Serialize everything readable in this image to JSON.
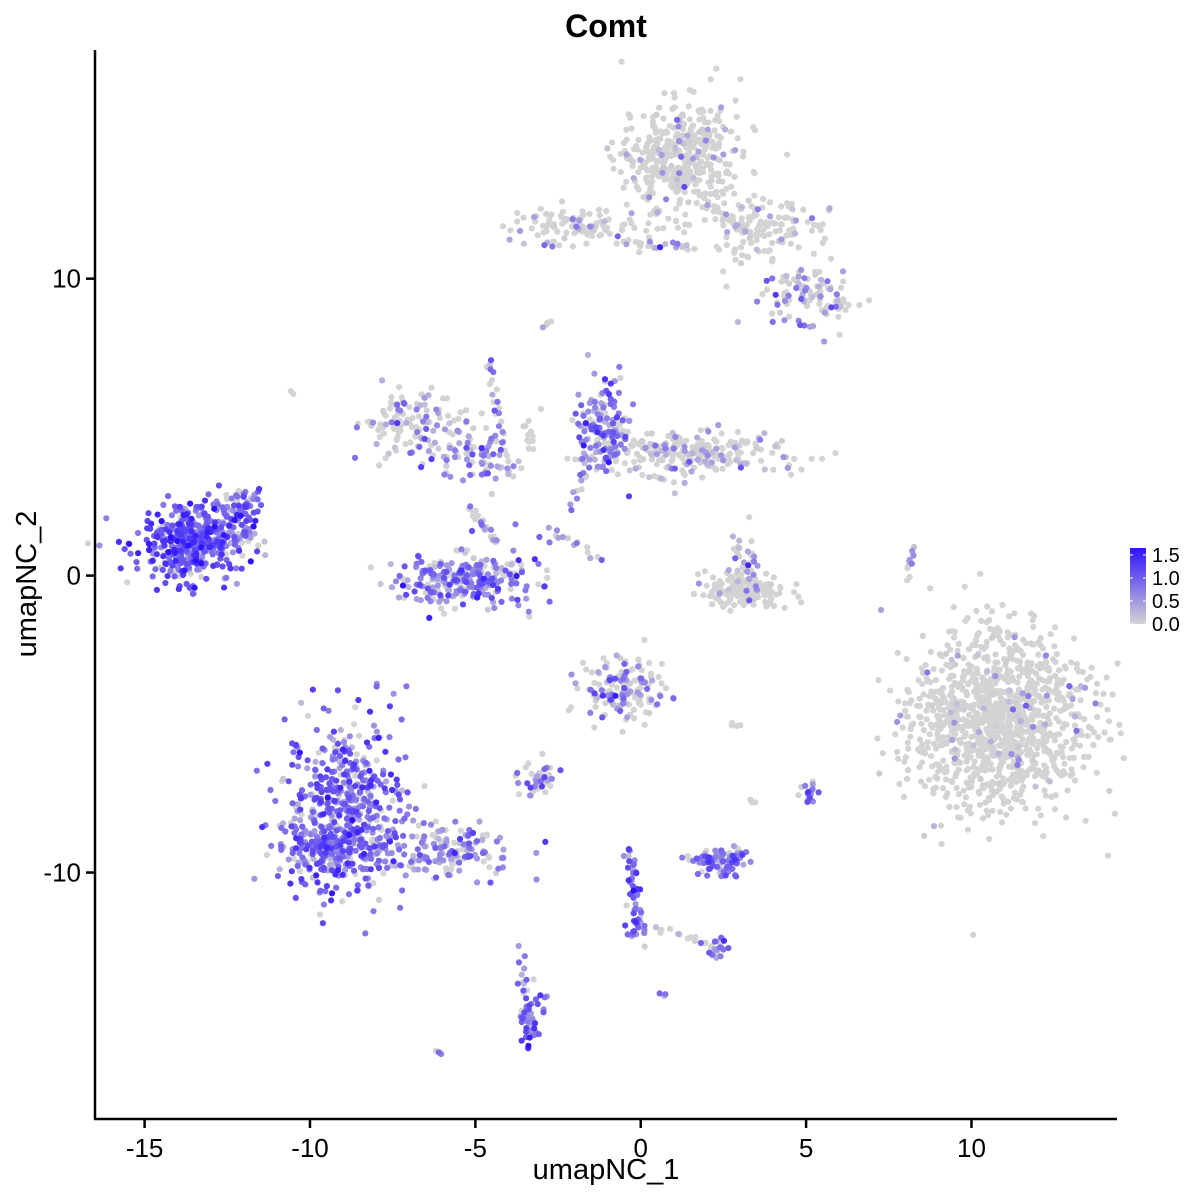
{
  "chart_data": {
    "type": "scatter",
    "title": "Comt",
    "xlabel": "umapNC_1",
    "ylabel": "umapNC_2",
    "xlim": [
      -16.5,
      14.4
    ],
    "ylim": [
      -18.3,
      17.7
    ],
    "x_ticks": [
      -15,
      -10,
      -5,
      0,
      5,
      10
    ],
    "y_ticks": [
      -10,
      0,
      10
    ],
    "x_tick_labels": [
      "-15",
      "-10",
      "-5",
      "0",
      "5",
      "10"
    ],
    "y_tick_labels": [
      "-10",
      "0",
      "10"
    ],
    "grid": false,
    "legend": {
      "placement": "right",
      "type": "colorbar",
      "min": 0.0,
      "max": 1.65,
      "ticks": [
        0.0,
        0.5,
        1.0,
        1.5
      ],
      "tick_labels": [
        "0.0",
        "0.5",
        "1.0",
        "1.5"
      ]
    },
    "color_low": "#d3d3d3",
    "color_high": "#2f13ff",
    "clusters": [
      {
        "name": "c1",
        "x": -13.6,
        "y": 1.1,
        "sx": 0.85,
        "sy": 0.65,
        "n": 420,
        "expr": 0.95,
        "frac": 0.92
      },
      {
        "name": "c1b",
        "x": -12.2,
        "y": 1.7,
        "sx": 0.35,
        "sy": 0.6,
        "n": 60,
        "expr": 0.8,
        "frac": 0.85
      },
      {
        "name": "c2",
        "x": -8.9,
        "y": -7.8,
        "sx": 0.9,
        "sy": 1.4,
        "n": 520,
        "expr": 0.85,
        "frac": 0.85
      },
      {
        "name": "c2b",
        "x": -9.4,
        "y": -9.2,
        "sx": 0.9,
        "sy": 0.5,
        "n": 160,
        "expr": 0.8,
        "frac": 0.8
      },
      {
        "name": "c2c",
        "x": -5.6,
        "y": -9.3,
        "sx": 0.9,
        "sy": 0.45,
        "n": 140,
        "expr": 0.65,
        "frac": 0.72
      },
      {
        "name": "c3",
        "x": -4.4,
        "y": 0.3,
        "sx": 0.7,
        "sy": 0.6,
        "n": 60,
        "expr": 0.7,
        "frac": 0.75
      },
      {
        "name": "c3b",
        "x": -5.7,
        "y": -0.2,
        "sx": 1.0,
        "sy": 0.45,
        "n": 220,
        "expr": 0.7,
        "frac": 0.75
      },
      {
        "name": "c4",
        "x": -7.0,
        "y": 5.2,
        "sx": 0.7,
        "sy": 0.6,
        "n": 110,
        "expr": 0.5,
        "frac": 0.4
      },
      {
        "name": "c4b",
        "x": -5.0,
        "y": 4.0,
        "sx": 0.7,
        "sy": 0.5,
        "n": 90,
        "expr": 0.6,
        "frac": 0.55
      },
      {
        "name": "c5",
        "x": -1.1,
        "y": 5.0,
        "sx": 0.4,
        "sy": 0.8,
        "n": 140,
        "expr": 0.75,
        "frac": 0.7
      },
      {
        "name": "c5b",
        "x": 1.5,
        "y": 4.1,
        "sx": 1.4,
        "sy": 0.4,
        "n": 230,
        "expr": 0.35,
        "frac": 0.3
      },
      {
        "name": "c6",
        "x": 1.2,
        "y": 14.1,
        "sx": 0.9,
        "sy": 0.9,
        "n": 420,
        "expr": 0.3,
        "frac": 0.1
      },
      {
        "name": "c6b",
        "x": 3.6,
        "y": 11.6,
        "sx": 0.9,
        "sy": 0.55,
        "n": 130,
        "expr": 0.3,
        "frac": 0.15
      },
      {
        "name": "c6c",
        "x": 5.1,
        "y": 9.4,
        "sx": 0.7,
        "sy": 0.5,
        "n": 100,
        "expr": 0.55,
        "frac": 0.45
      },
      {
        "name": "c6d",
        "x": -1.8,
        "y": 11.7,
        "sx": 1.2,
        "sy": 0.35,
        "n": 110,
        "expr": 0.35,
        "frac": 0.15
      },
      {
        "name": "c7",
        "x": 10.8,
        "y": -4.9,
        "sx": 1.3,
        "sy": 1.5,
        "n": 1150,
        "expr": 0.25,
        "frac": 0.06
      },
      {
        "name": "c8",
        "x": 3.2,
        "y": -0.5,
        "sx": 0.6,
        "sy": 0.3,
        "n": 170,
        "expr": 0.2,
        "frac": 0.05
      },
      {
        "name": "c8b",
        "x": 3.2,
        "y": 0.6,
        "sx": 0.25,
        "sy": 0.5,
        "n": 30,
        "expr": 0.6,
        "frac": 0.5
      },
      {
        "name": "c9",
        "x": -0.5,
        "y": -3.8,
        "sx": 0.6,
        "sy": 0.55,
        "n": 150,
        "expr": 0.55,
        "frac": 0.45
      },
      {
        "name": "c10",
        "x": 2.4,
        "y": -9.6,
        "sx": 0.45,
        "sy": 0.25,
        "n": 90,
        "expr": 0.75,
        "frac": 0.8
      },
      {
        "name": "c11",
        "x": -3.1,
        "y": -6.9,
        "sx": 0.35,
        "sy": 0.25,
        "n": 40,
        "expr": 0.6,
        "frac": 0.55
      },
      {
        "name": "c12",
        "x": -3.3,
        "y": -14.8,
        "sx": 0.2,
        "sy": 0.5,
        "n": 45,
        "expr": 0.85,
        "frac": 0.9
      },
      {
        "name": "c13",
        "x": 5.1,
        "y": -7.3,
        "sx": 0.15,
        "sy": 0.2,
        "n": 14,
        "expr": 0.75,
        "frac": 0.8
      },
      {
        "name": "c14",
        "x": 2.3,
        "y": -12.6,
        "sx": 0.2,
        "sy": 0.18,
        "n": 20,
        "expr": 0.7,
        "frac": 0.7
      },
      {
        "name": "c15",
        "x": -0.1,
        "y": -11.6,
        "sx": 0.2,
        "sy": 0.4,
        "n": 30,
        "expr": 0.9,
        "frac": 0.9
      }
    ],
    "trails": [
      {
        "x1": -0.3,
        "y1": -9.2,
        "x2": -0.2,
        "y2": -11.0,
        "n": 30,
        "expr": 0.9,
        "frac": 0.85
      },
      {
        "x1": -11.6,
        "y1": 2.8,
        "x2": -12.4,
        "y2": 1.8,
        "n": 20,
        "expr": 0.9,
        "frac": 0.9
      },
      {
        "x1": -5.2,
        "y1": 2.3,
        "x2": -4.4,
        "y2": 1.2,
        "n": 20,
        "expr": 0.45,
        "frac": 0.45
      },
      {
        "x1": -4.6,
        "y1": 7.3,
        "x2": -4.1,
        "y2": 4.3,
        "n": 22,
        "expr": 0.7,
        "frac": 0.7
      },
      {
        "x1": -3.5,
        "y1": 5.2,
        "x2": -3.3,
        "y2": 4.2,
        "n": 10,
        "expr": 0.3,
        "frac": 0.15
      },
      {
        "x1": -2.8,
        "y1": 1.6,
        "x2": -1.2,
        "y2": 0.6,
        "n": 14,
        "expr": 0.5,
        "frac": 0.45
      },
      {
        "x1": -2.1,
        "y1": 2.2,
        "x2": -1.4,
        "y2": 4.2,
        "n": 14,
        "expr": 0.5,
        "frac": 0.5
      },
      {
        "x1": -1.6,
        "y1": 4.9,
        "x2": 2.6,
        "y2": 3.8,
        "n": 40,
        "expr": 0.4,
        "frac": 0.35
      },
      {
        "x1": 2.0,
        "y1": 12.6,
        "x2": 3.2,
        "y2": 11.6,
        "n": 20,
        "expr": 0.3,
        "frac": 0.15
      },
      {
        "x1": -0.6,
        "y1": 11.2,
        "x2": 1.6,
        "y2": 11.1,
        "n": 18,
        "expr": 0.55,
        "frac": 0.5
      },
      {
        "x1": 0.3,
        "y1": -11.8,
        "x2": 2.2,
        "y2": -12.5,
        "n": 14,
        "expr": 0.4,
        "frac": 0.2
      },
      {
        "x1": -3.7,
        "y1": -12.6,
        "x2": -3.5,
        "y2": -14.4,
        "n": 10,
        "expr": 0.7,
        "frac": 0.7
      },
      {
        "x1": 8.1,
        "y1": -0.1,
        "x2": 8.2,
        "y2": 0.9,
        "n": 10,
        "expr": 0.5,
        "frac": 0.5
      },
      {
        "x1": -6.0,
        "y1": -16.0,
        "x2": -6.0,
        "y2": -16.1,
        "n": 4,
        "expr": 0.7,
        "frac": 0.75
      },
      {
        "x1": 0.6,
        "y1": -14.1,
        "x2": 0.7,
        "y2": -14.2,
        "n": 3,
        "expr": 0.7,
        "frac": 0.75
      },
      {
        "x1": -2.7,
        "y1": 8.6,
        "x2": -2.9,
        "y2": 8.4,
        "n": 4,
        "expr": 0.2,
        "frac": 0.1
      },
      {
        "x1": -10.5,
        "y1": 6.1,
        "x2": -10.5,
        "y2": 6.1,
        "n": 2,
        "expr": 0.2,
        "frac": 0.2
      },
      {
        "x1": 2.7,
        "y1": -5.1,
        "x2": 2.9,
        "y2": -5.0,
        "n": 4,
        "expr": 0.4,
        "frac": 0.3
      },
      {
        "x1": 3.4,
        "y1": -7.5,
        "x2": 3.3,
        "y2": -7.7,
        "n": 3,
        "expr": 0.3,
        "frac": 0.1
      }
    ]
  }
}
